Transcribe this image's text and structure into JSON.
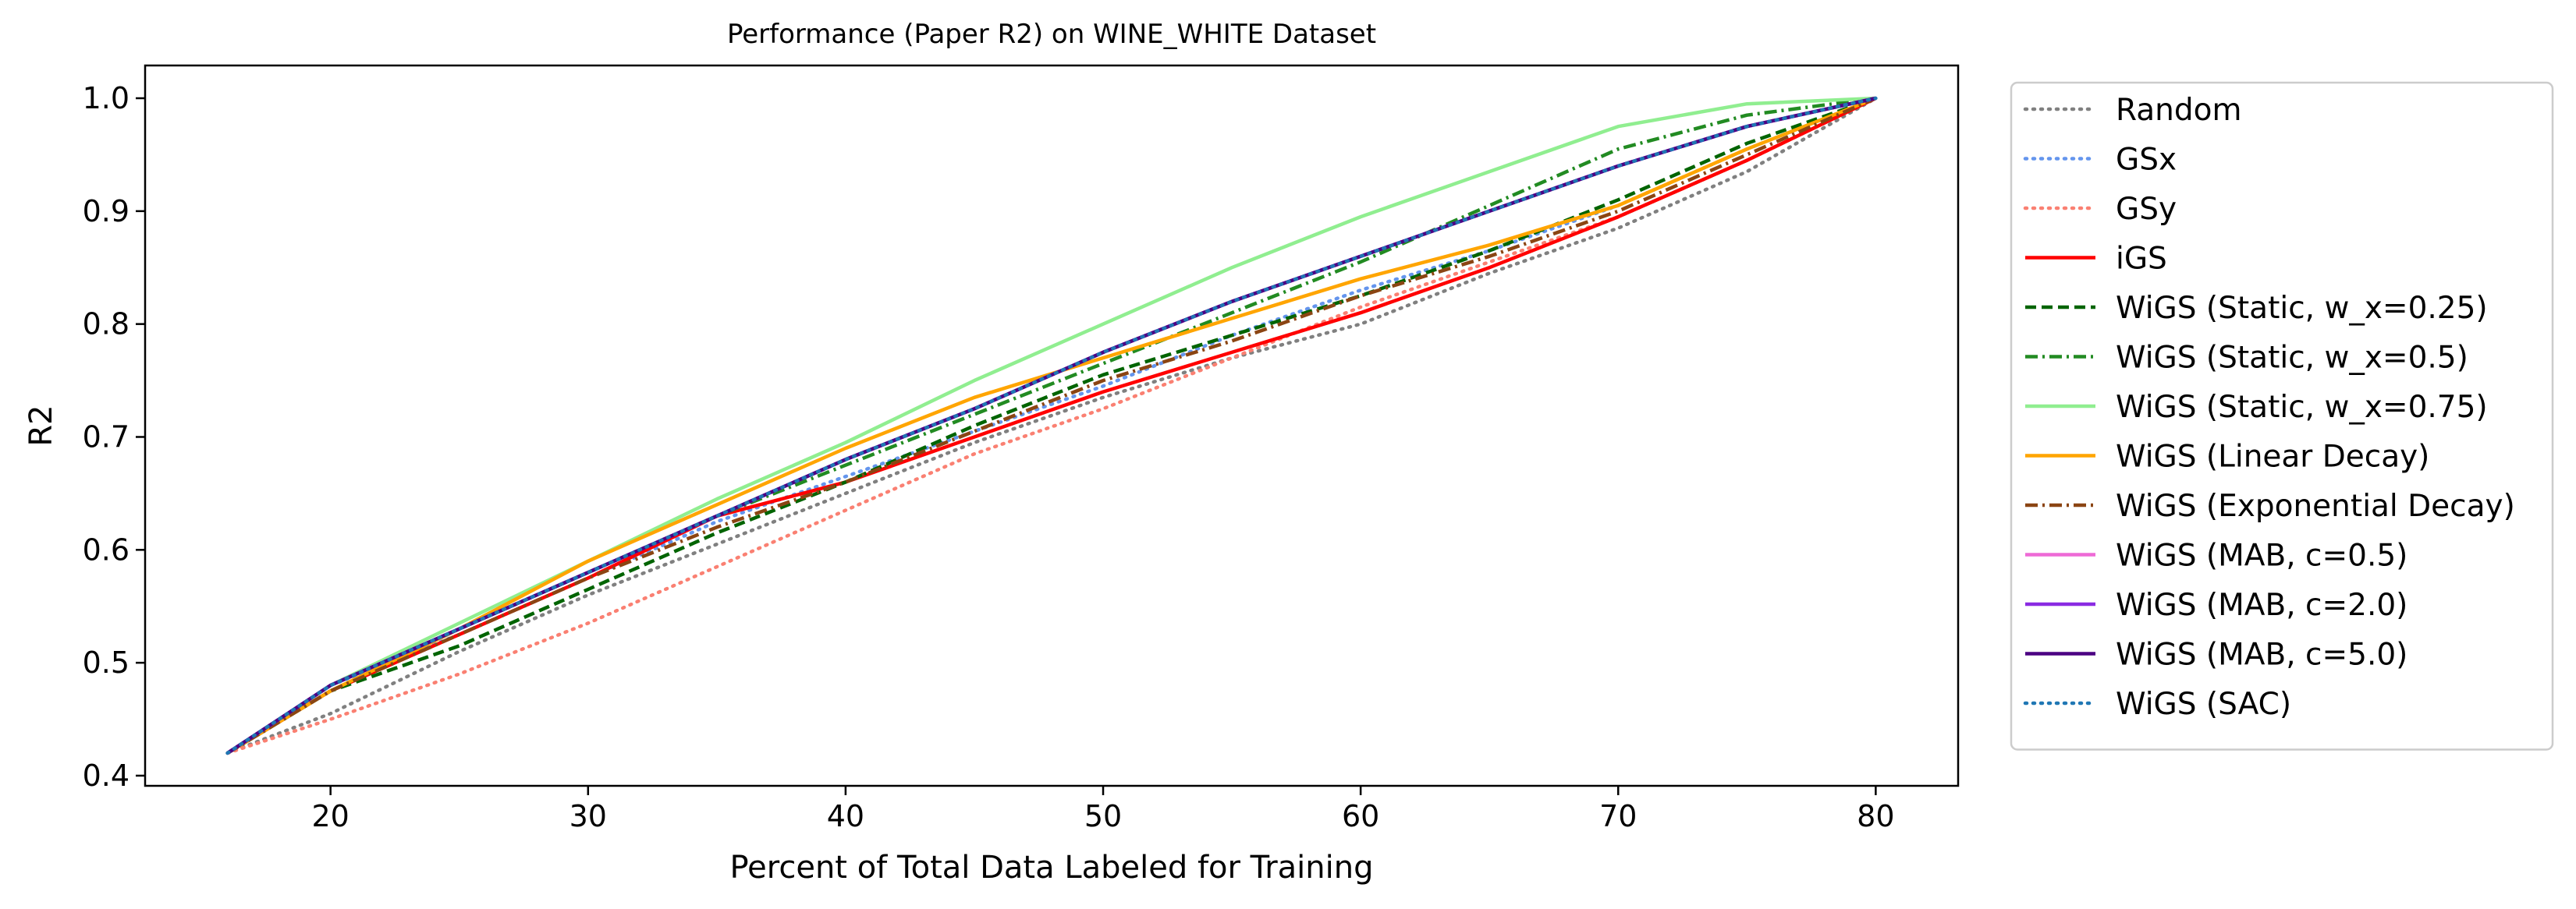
{
  "chart_data": {
    "type": "line",
    "title": "Performance (Paper R2) on WINE_WHITE Dataset",
    "xlabel": "Percent of Total Data Labeled for Training",
    "ylabel": "R2",
    "xlim": [
      12.8,
      83.2
    ],
    "ylim": [
      0.391,
      1.029
    ],
    "xticks": [
      20,
      30,
      40,
      50,
      60,
      70,
      80
    ],
    "yticks": [
      0.4,
      0.5,
      0.6,
      0.7,
      0.8,
      0.9,
      1.0
    ],
    "xtick_labels": [
      "20",
      "30",
      "40",
      "50",
      "60",
      "70",
      "80"
    ],
    "ytick_labels": [
      "0.4",
      "0.5",
      "0.6",
      "0.7",
      "0.8",
      "0.9",
      "1.0"
    ],
    "grid": false,
    "legend_position": "outside-right",
    "series": [
      {
        "name": "Random",
        "color": "#808080",
        "dash": "dotted",
        "x": [
          16,
          20,
          25,
          30,
          35,
          40,
          45,
          50,
          55,
          60,
          65,
          70,
          75,
          80
        ],
        "y": [
          0.42,
          0.455,
          0.51,
          0.56,
          0.605,
          0.65,
          0.695,
          0.735,
          0.77,
          0.8,
          0.845,
          0.885,
          0.935,
          1.0
        ]
      },
      {
        "name": "GSx",
        "color": "#6495ED",
        "dash": "dotted",
        "x": [
          16,
          20,
          25,
          30,
          35,
          40,
          45,
          50,
          55,
          60,
          65,
          70,
          75,
          80
        ],
        "y": [
          0.42,
          0.48,
          0.525,
          0.575,
          0.625,
          0.665,
          0.705,
          0.745,
          0.79,
          0.83,
          0.865,
          0.905,
          0.955,
          1.0
        ]
      },
      {
        "name": "GSy",
        "color": "#FA8072",
        "dash": "dotted",
        "x": [
          16,
          20,
          25,
          30,
          35,
          40,
          45,
          50,
          55,
          60,
          65,
          70,
          75,
          80
        ],
        "y": [
          0.42,
          0.45,
          0.49,
          0.535,
          0.585,
          0.635,
          0.685,
          0.725,
          0.77,
          0.815,
          0.855,
          0.895,
          0.945,
          1.0
        ]
      },
      {
        "name": "iGS",
        "color": "#FF0000",
        "dash": "solid",
        "x": [
          16,
          20,
          25,
          30,
          35,
          40,
          45,
          50,
          55,
          60,
          65,
          70,
          75,
          80
        ],
        "y": [
          0.42,
          0.475,
          0.525,
          0.575,
          0.63,
          0.66,
          0.7,
          0.74,
          0.775,
          0.81,
          0.85,
          0.895,
          0.945,
          1.0
        ]
      },
      {
        "name": "WiGS (Static, w_x=0.25)",
        "color": "#006400",
        "dash": "dashed",
        "x": [
          16,
          20,
          25,
          30,
          35,
          40,
          45,
          50,
          55,
          60,
          65,
          70,
          75,
          80
        ],
        "y": [
          0.42,
          0.475,
          0.515,
          0.565,
          0.615,
          0.66,
          0.71,
          0.755,
          0.79,
          0.825,
          0.865,
          0.91,
          0.96,
          1.0
        ]
      },
      {
        "name": "WiGS (Static, w_x=0.5)",
        "color": "#228B22",
        "dash": "dashdot",
        "x": [
          16,
          20,
          25,
          30,
          35,
          40,
          45,
          50,
          55,
          60,
          65,
          70,
          75,
          80
        ],
        "y": [
          0.42,
          0.475,
          0.53,
          0.58,
          0.63,
          0.675,
          0.72,
          0.765,
          0.81,
          0.855,
          0.905,
          0.955,
          0.985,
          1.0
        ]
      },
      {
        "name": "WiGS (Static, w_x=0.75)",
        "color": "#90EE90",
        "dash": "solid",
        "x": [
          16,
          20,
          25,
          30,
          35,
          40,
          45,
          50,
          55,
          60,
          65,
          70,
          75,
          80
        ],
        "y": [
          0.42,
          0.48,
          0.535,
          0.59,
          0.645,
          0.695,
          0.75,
          0.8,
          0.85,
          0.895,
          0.935,
          0.975,
          0.995,
          1.0
        ]
      },
      {
        "name": "WiGS (Linear Decay)",
        "color": "#FFA500",
        "dash": "solid",
        "x": [
          16,
          20,
          25,
          30,
          35,
          40,
          45,
          50,
          55,
          60,
          65,
          70,
          75,
          80
        ],
        "y": [
          0.42,
          0.475,
          0.53,
          0.59,
          0.64,
          0.69,
          0.735,
          0.77,
          0.805,
          0.84,
          0.87,
          0.905,
          0.955,
          1.0
        ]
      },
      {
        "name": "WiGS (Exponential Decay)",
        "color": "#8B4513",
        "dash": "dashdot",
        "x": [
          16,
          20,
          25,
          30,
          35,
          40,
          45,
          50,
          55,
          60,
          65,
          70,
          75,
          80
        ],
        "y": [
          0.42,
          0.475,
          0.525,
          0.575,
          0.62,
          0.66,
          0.705,
          0.75,
          0.785,
          0.825,
          0.86,
          0.9,
          0.95,
          1.0
        ]
      },
      {
        "name": "WiGS (MAB, c=0.5)",
        "color": "#EE6AD6",
        "dash": "solid",
        "x": [
          16,
          20,
          25,
          30,
          35,
          40,
          45,
          50,
          55,
          60,
          65,
          70,
          75,
          80
        ],
        "y": [
          0.42,
          0.48,
          0.53,
          0.58,
          0.63,
          0.68,
          0.725,
          0.775,
          0.82,
          0.86,
          0.9,
          0.94,
          0.975,
          1.0
        ]
      },
      {
        "name": "WiGS (MAB, c=2.0)",
        "color": "#8A2BE2",
        "dash": "solid",
        "x": [
          16,
          20,
          25,
          30,
          35,
          40,
          45,
          50,
          55,
          60,
          65,
          70,
          75,
          80
        ],
        "y": [
          0.42,
          0.48,
          0.53,
          0.58,
          0.63,
          0.68,
          0.725,
          0.775,
          0.82,
          0.86,
          0.9,
          0.94,
          0.975,
          1.0
        ]
      },
      {
        "name": "WiGS (MAB, c=5.0)",
        "color": "#4B0082",
        "dash": "solid",
        "x": [
          16,
          20,
          25,
          30,
          35,
          40,
          45,
          50,
          55,
          60,
          65,
          70,
          75,
          80
        ],
        "y": [
          0.42,
          0.48,
          0.53,
          0.58,
          0.63,
          0.68,
          0.725,
          0.775,
          0.82,
          0.86,
          0.9,
          0.94,
          0.975,
          1.0
        ]
      },
      {
        "name": "WiGS (SAC)",
        "color": "#1F77B4",
        "dash": "dotted",
        "x": [
          16,
          20,
          25,
          30,
          35,
          40,
          45,
          50,
          55,
          60,
          65,
          70,
          75,
          80
        ],
        "y": [
          0.42,
          0.48,
          0.53,
          0.58,
          0.63,
          0.68,
          0.725,
          0.775,
          0.82,
          0.86,
          0.9,
          0.94,
          0.975,
          1.0
        ]
      }
    ]
  }
}
